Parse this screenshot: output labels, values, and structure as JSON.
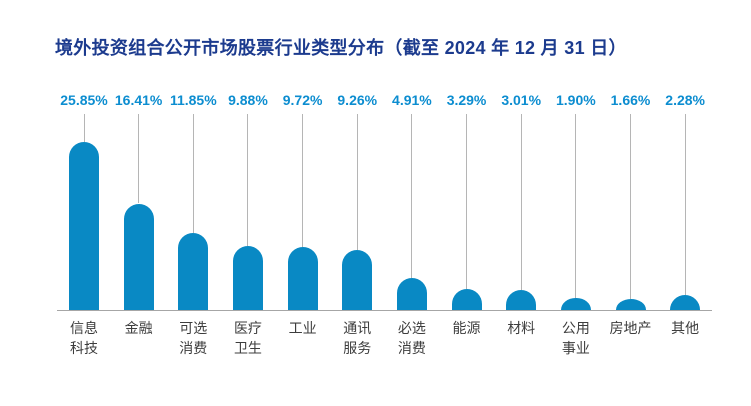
{
  "header": {
    "title": "境外投资组合公开市场股票行业类型分布（截至 2024 年 12 月 31 日）",
    "title_color": "#1c3b8e"
  },
  "chart_data": {
    "type": "bar",
    "subtype": "lollipop-rounded-top",
    "title": "境外投资组合公开市场股票行业类型分布（截至 2024 年 12 月 31 日）",
    "categories": [
      "信息科技",
      "金融",
      "可选消费",
      "医疗卫生",
      "工业",
      "通讯服务",
      "必选消费",
      "能源",
      "材料",
      "公用事业",
      "房地产",
      "其他"
    ],
    "category_lines": [
      [
        "信息",
        "科技"
      ],
      [
        "金融"
      ],
      [
        "可选",
        "消费"
      ],
      [
        "医疗",
        "卫生"
      ],
      [
        "工业"
      ],
      [
        "通讯",
        "服务"
      ],
      [
        "必选",
        "消费"
      ],
      [
        "能源"
      ],
      [
        "材料"
      ],
      [
        "公用",
        "事业"
      ],
      [
        "房地产"
      ],
      [
        "其他"
      ]
    ],
    "values": [
      25.85,
      16.41,
      11.85,
      9.88,
      9.72,
      9.26,
      4.91,
      3.29,
      3.01,
      1.9,
      1.66,
      2.28
    ],
    "value_labels": [
      "25.85%",
      "16.41%",
      "11.85%",
      "9.88%",
      "9.72%",
      "9.26%",
      "4.91%",
      "3.29%",
      "3.01%",
      "1.90%",
      "1.66%",
      "2.28%"
    ],
    "xlabel": "",
    "ylabel": "",
    "ylim": [
      0,
      27
    ],
    "grid": false,
    "legend": "none",
    "value_labels_position": "above-connector-line",
    "colors": {
      "bar": "#0989c4",
      "value_label": "#0c8dd0",
      "category_label": "#3d3d3d",
      "connector_line": "#b5b5b5",
      "baseline": "#a6a6a6"
    }
  }
}
